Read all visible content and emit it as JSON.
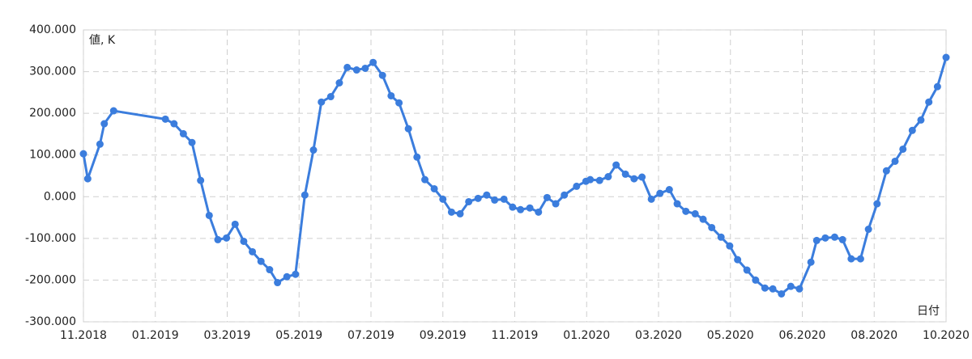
{
  "chart_data": {
    "type": "line",
    "y_label": "値, K",
    "x_label": "日付",
    "color": "#3b7ddd",
    "grid": true,
    "xlim": [
      0,
      12
    ],
    "xticks": [
      {
        "value": 0,
        "label": "11.2018"
      },
      {
        "value": 1,
        "label": "01.2019"
      },
      {
        "value": 2,
        "label": "03.2019"
      },
      {
        "value": 3,
        "label": "05.2019"
      },
      {
        "value": 4,
        "label": "07.2019"
      },
      {
        "value": 5,
        "label": "09.2019"
      },
      {
        "value": 6,
        "label": "11.2019"
      },
      {
        "value": 7,
        "label": "01.2020"
      },
      {
        "value": 8,
        "label": "03.2020"
      },
      {
        "value": 9,
        "label": "05.2020"
      },
      {
        "value": 10,
        "label": "06.2020"
      },
      {
        "value": 11,
        "label": "08.2020"
      },
      {
        "value": 12,
        "label": "10.2020"
      }
    ],
    "ylim": [
      -300000,
      400000
    ],
    "yticks": [
      {
        "value": -300000,
        "label": "-300.000"
      },
      {
        "value": -200000,
        "label": "-200.000"
      },
      {
        "value": -100000,
        "label": "-100.000"
      },
      {
        "value": 0,
        "label": "0.000"
      },
      {
        "value": 100000,
        "label": "100.000"
      },
      {
        "value": 200000,
        "label": "200.000"
      },
      {
        "value": 300000,
        "label": "300.000"
      },
      {
        "value": 400000,
        "label": "400.000"
      }
    ],
    "x": [
      0,
      0.06,
      0.23,
      0.29,
      0.42,
      1.14,
      1.26,
      1.39,
      1.51,
      1.63,
      1.75,
      1.87,
      1.99,
      2.11,
      2.23,
      2.35,
      2.47,
      2.59,
      2.7,
      2.83,
      2.95,
      3.08,
      3.2,
      3.31,
      3.44,
      3.56,
      3.67,
      3.8,
      3.92,
      4.03,
      4.16,
      4.28,
      4.39,
      4.52,
      4.64,
      4.75,
      4.88,
      5.0,
      5.12,
      5.24,
      5.36,
      5.49,
      5.61,
      5.72,
      5.85,
      5.97,
      6.08,
      6.21,
      6.33,
      6.45,
      6.57,
      6.69,
      6.86,
      6.99,
      7.05,
      7.18,
      7.3,
      7.41,
      7.54,
      7.66,
      7.77,
      7.9,
      8.02,
      8.15,
      8.26,
      8.38,
      8.51,
      8.62,
      8.74,
      8.87,
      8.99,
      9.1,
      9.23,
      9.35,
      9.48,
      9.59,
      9.71,
      9.84,
      9.96,
      10.12,
      10.2,
      10.32,
      10.45,
      10.56,
      10.68,
      10.81,
      10.92,
      11.04,
      11.17,
      11.29,
      11.4,
      11.53,
      11.65,
      11.76,
      11.88,
      12.0
    ],
    "values": [
      103000,
      43000,
      126000,
      175000,
      206000,
      186000,
      175000,
      151000,
      130000,
      39000,
      -45000,
      -103000,
      -99000,
      -66000,
      -107000,
      -132000,
      -155000,
      -175000,
      -206000,
      -192000,
      -186000,
      4000,
      112000,
      227000,
      240000,
      273000,
      310000,
      304000,
      308000,
      322000,
      291000,
      242000,
      225000,
      163000,
      95000,
      41000,
      19000,
      -6000,
      -37000,
      -41000,
      -12000,
      -4000,
      4000,
      -8000,
      -6000,
      -25000,
      -31000,
      -27000,
      -37000,
      -2000,
      -17000,
      4000,
      25000,
      37000,
      41000,
      39000,
      48000,
      76000,
      54000,
      43000,
      47000,
      -6000,
      8000,
      17000,
      -17000,
      -35000,
      -41000,
      -54000,
      -74000,
      -97000,
      -118000,
      -151000,
      -176000,
      -200000,
      -219000,
      -221000,
      -233000,
      -215000,
      -221000,
      -157000,
      -105000,
      -99000,
      -97000,
      -103000,
      -149000,
      -149000,
      -78000,
      -17000,
      62000,
      85000,
      114000,
      159000,
      184000,
      227000,
      264000,
      334000
    ]
  }
}
